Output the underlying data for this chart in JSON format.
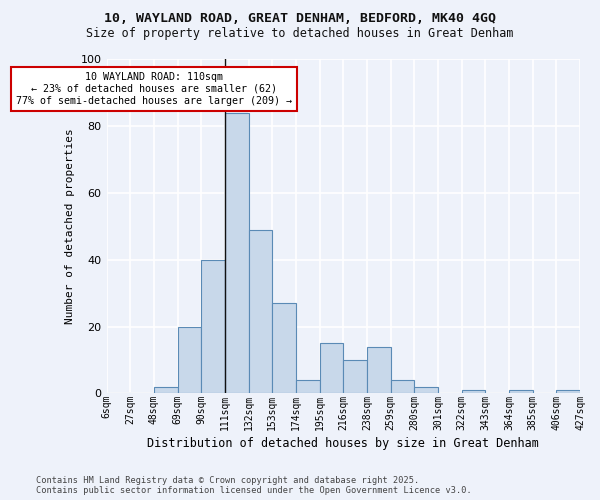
{
  "title_line1": "10, WAYLAND ROAD, GREAT DENHAM, BEDFORD, MK40 4GQ",
  "title_line2": "Size of property relative to detached houses in Great Denham",
  "xlabel": "Distribution of detached houses by size in Great Denham",
  "ylabel": "Number of detached properties",
  "bin_labels": [
    "6sqm",
    "27sqm",
    "48sqm",
    "69sqm",
    "90sqm",
    "111sqm",
    "132sqm",
    "153sqm",
    "174sqm",
    "195sqm",
    "216sqm",
    "238sqm",
    "259sqm",
    "280sqm",
    "301sqm",
    "322sqm",
    "343sqm",
    "364sqm",
    "385sqm",
    "406sqm",
    "427sqm"
  ],
  "values": [
    0,
    0,
    2,
    20,
    40,
    84,
    49,
    27,
    4,
    15,
    10,
    14,
    4,
    2,
    0,
    1,
    0,
    1,
    0,
    1
  ],
  "annotation_title": "10 WAYLAND ROAD: 110sqm",
  "annotation_line2": "← 23% of detached houses are smaller (62)",
  "annotation_line3": "77% of semi-detached houses are larger (209) →",
  "bar_color": "#c8d8ea",
  "bar_edge_color": "#5a8ab5",
  "highlight_line_color": "#111111",
  "annotation_box_color": "#ffffff",
  "annotation_box_edge": "#cc0000",
  "background_color": "#eef2fa",
  "grid_color": "#ffffff",
  "ylim": [
    0,
    100
  ],
  "yticks": [
    0,
    20,
    40,
    60,
    80,
    100
  ],
  "footer_line1": "Contains HM Land Registry data © Crown copyright and database right 2025.",
  "footer_line2": "Contains public sector information licensed under the Open Government Licence v3.0."
}
